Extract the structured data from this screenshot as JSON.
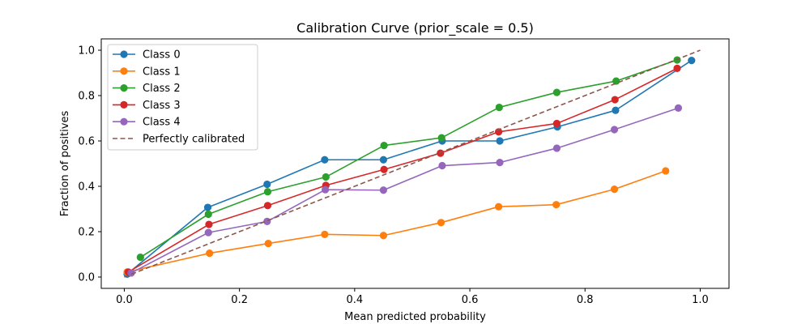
{
  "chart_data": {
    "type": "line",
    "title": "Calibration Curve (prior_scale = 0.5)",
    "xlabel": "Mean predicted probability",
    "ylabel": "Fraction of positives",
    "xlim": [
      -0.04,
      1.05
    ],
    "ylim": [
      -0.05,
      1.05
    ],
    "xticks": [
      0.0,
      0.2,
      0.4,
      0.6,
      0.8,
      1.0
    ],
    "xtick_labels": [
      "0.0",
      "0.2",
      "0.4",
      "0.6",
      "0.8",
      "1.0"
    ],
    "yticks": [
      0.0,
      0.2,
      0.4,
      0.6,
      0.8,
      1.0
    ],
    "ytick_labels": [
      "0.0",
      "0.2",
      "0.4",
      "0.6",
      "0.8",
      "1.0"
    ],
    "grid": false,
    "legend_position": "top-left",
    "series": [
      {
        "name": "Class 0",
        "color": "#1f77b4",
        "marker": "circle",
        "x": [
          0.005,
          0.145,
          0.248,
          0.348,
          0.45,
          0.552,
          0.652,
          0.752,
          0.853,
          0.985
        ],
        "y": [
          0.013,
          0.307,
          0.409,
          0.517,
          0.517,
          0.6,
          0.6,
          0.662,
          0.735,
          0.955
        ]
      },
      {
        "name": "Class 1",
        "color": "#ff7f0e",
        "marker": "circle",
        "x": [
          0.005,
          0.148,
          0.25,
          0.348,
          0.45,
          0.55,
          0.65,
          0.75,
          0.851,
          0.94
        ],
        "y": [
          0.022,
          0.105,
          0.148,
          0.188,
          0.183,
          0.24,
          0.31,
          0.319,
          0.387,
          0.468
        ]
      },
      {
        "name": "Class 2",
        "color": "#2ca02c",
        "marker": "circle",
        "x": [
          0.028,
          0.146,
          0.249,
          0.35,
          0.451,
          0.551,
          0.651,
          0.751,
          0.854,
          0.96
        ],
        "y": [
          0.087,
          0.277,
          0.376,
          0.441,
          0.58,
          0.614,
          0.748,
          0.814,
          0.864,
          0.957
        ]
      },
      {
        "name": "Class 3",
        "color": "#d62728",
        "marker": "circle",
        "x": [
          0.007,
          0.147,
          0.249,
          0.35,
          0.451,
          0.549,
          0.65,
          0.751,
          0.852,
          0.96
        ],
        "y": [
          0.022,
          0.232,
          0.315,
          0.404,
          0.474,
          0.546,
          0.64,
          0.677,
          0.782,
          0.92
        ]
      },
      {
        "name": "Class 4",
        "color": "#9467bd",
        "marker": "circle",
        "x": [
          0.012,
          0.146,
          0.248,
          0.349,
          0.45,
          0.552,
          0.652,
          0.751,
          0.851,
          0.962
        ],
        "y": [
          0.018,
          0.196,
          0.245,
          0.385,
          0.383,
          0.491,
          0.505,
          0.568,
          0.65,
          0.745
        ]
      },
      {
        "name": "Perfectly calibrated",
        "color": "#8c564b",
        "dashed": true,
        "marker": "none",
        "x": [
          0.0,
          1.0
        ],
        "y": [
          0.0,
          1.0
        ]
      }
    ]
  }
}
